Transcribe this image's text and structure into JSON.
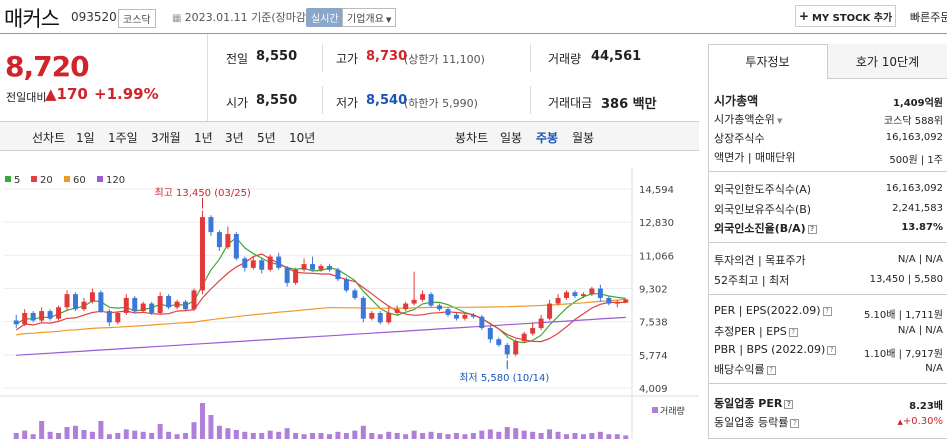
{
  "header": {
    "title": "매커스",
    "code": "093520",
    "market": "코스닥",
    "date": "2023.01.11  기준(장마감)",
    "live": "실시간",
    "info_dropdown": "기업개요",
    "mystock": "MY STOCK 추가",
    "quick": "빠른주문"
  },
  "price": {
    "current": "8,720",
    "change_label": "전일대비",
    "change": "170",
    "rate": "+1.99%"
  },
  "quote": {
    "prev_label": "전일",
    "prev": "8,550",
    "high_label": "고가",
    "high": "8,730",
    "upper_limit": "(상한가 11,100)",
    "volume_label": "거래량",
    "volume": "44,561",
    "open_label": "시가",
    "open": "8,550",
    "low_label": "저가",
    "low": "8,540",
    "lower_limit": "(하한가 5,990)",
    "amount_label": "거래대금",
    "amount": "386 백만"
  },
  "periods": {
    "line_label": "선차트",
    "line": [
      "1일",
      "1주일",
      "3개월",
      "1년",
      "3년",
      "5년",
      "10년"
    ],
    "candle_label": "봉차트",
    "candle": [
      "일봉",
      "주봉",
      "월봉"
    ],
    "candle_active": "주봉"
  },
  "chart_data": {
    "type": "candlestick",
    "legend": [
      "5",
      "20",
      "60",
      "120"
    ],
    "legend_colors": [
      "#3da833",
      "#e34040",
      "#f0992a",
      "#9b5bd2"
    ],
    "y_ticks": [
      "14,594",
      "12,830",
      "11,066",
      "9,302",
      "7,538",
      "5,774",
      "4,009"
    ],
    "ylim": [
      4009,
      14594
    ],
    "annotation_high": "최고 13,450 (03/25)",
    "annotation_low": "최저 5,580 (10/14)",
    "volume_label": "거래량",
    "candles": [
      [
        7600,
        7400,
        7900,
        7200
      ],
      [
        7400,
        8000,
        8200,
        7300
      ],
      [
        8000,
        7600,
        8100,
        7500
      ],
      [
        7600,
        8100,
        8300,
        7500
      ],
      [
        8100,
        7700,
        8200,
        7600
      ],
      [
        7700,
        8300,
        8400,
        7600
      ],
      [
        8300,
        9000,
        9200,
        8100
      ],
      [
        9000,
        8200,
        9100,
        8100
      ],
      [
        8200,
        8600,
        8800,
        8100
      ],
      [
        8600,
        9100,
        9300,
        8500
      ],
      [
        9100,
        8100,
        9200,
        8000
      ],
      [
        8100,
        7500,
        8200,
        7300
      ],
      [
        7500,
        8000,
        8100,
        7400
      ],
      [
        8000,
        8800,
        9000,
        7900
      ],
      [
        8800,
        8100,
        8900,
        8000
      ],
      [
        8100,
        8500,
        8600,
        8000
      ],
      [
        8500,
        8000,
        8600,
        7900
      ],
      [
        8000,
        8900,
        9100,
        7900
      ],
      [
        8900,
        8300,
        9000,
        8200
      ],
      [
        8300,
        8600,
        8700,
        8200
      ],
      [
        8600,
        8200,
        8700,
        8100
      ],
      [
        8200,
        9200,
        9300,
        8100
      ],
      [
        9200,
        13100,
        13450,
        9000
      ],
      [
        13100,
        12300,
        13200,
        12100
      ],
      [
        12300,
        11500,
        12400,
        11300
      ],
      [
        11500,
        12200,
        12600,
        11400
      ],
      [
        12200,
        10900,
        12300,
        10800
      ],
      [
        10900,
        10400,
        11000,
        10200
      ],
      [
        10400,
        10800,
        11000,
        10300
      ],
      [
        10800,
        10300,
        10900,
        10100
      ],
      [
        10300,
        11000,
        11100,
        10200
      ],
      [
        11000,
        10400,
        11200,
        10300
      ],
      [
        10400,
        9600,
        10500,
        9400
      ],
      [
        9600,
        10300,
        10400,
        9500
      ],
      [
        10300,
        10600,
        10900,
        10200
      ],
      [
        10600,
        10300,
        11000,
        10200
      ],
      [
        10300,
        10500,
        10600,
        10200
      ],
      [
        10500,
        10300,
        10600,
        10200
      ],
      [
        10300,
        9800,
        10400,
        9700
      ],
      [
        9800,
        9200,
        9900,
        9100
      ],
      [
        9200,
        8800,
        9300,
        8700
      ],
      [
        8800,
        7700,
        8900,
        7500
      ],
      [
        7700,
        8000,
        8100,
        7600
      ],
      [
        8000,
        7500,
        8100,
        7400
      ],
      [
        7500,
        8000,
        8400,
        7400
      ],
      [
        8000,
        8200,
        8400,
        7900
      ],
      [
        8200,
        8500,
        8600,
        8100
      ],
      [
        8500,
        8700,
        10200,
        8400
      ],
      [
        8700,
        9000,
        9200,
        8600
      ],
      [
        9000,
        8400,
        9100,
        8300
      ],
      [
        8400,
        8200,
        8500,
        8100
      ],
      [
        8200,
        7900,
        8300,
        7800
      ],
      [
        7900,
        7700,
        8000,
        7600
      ],
      [
        7700,
        7900,
        8000,
        7600
      ],
      [
        7900,
        7800,
        8000,
        7700
      ],
      [
        7800,
        7200,
        7900,
        7100
      ],
      [
        7200,
        6600,
        7300,
        6400
      ],
      [
        6600,
        6300,
        6700,
        6200
      ],
      [
        6300,
        5800,
        6400,
        5580
      ],
      [
        5800,
        6500,
        6600,
        5700
      ],
      [
        6500,
        6900,
        7000,
        6400
      ],
      [
        6900,
        7200,
        7500,
        6800
      ],
      [
        7200,
        7700,
        7900,
        7100
      ],
      [
        7700,
        8500,
        8700,
        7600
      ],
      [
        8500,
        8800,
        9000,
        8400
      ],
      [
        8800,
        9100,
        9200,
        8700
      ],
      [
        9100,
        8900,
        9200,
        8800
      ],
      [
        8900,
        9000,
        9100,
        8800
      ],
      [
        9000,
        9300,
        9400,
        8900
      ],
      [
        9300,
        8800,
        9500,
        8600
      ],
      [
        8800,
        8500,
        8900,
        8400
      ],
      [
        8500,
        8550,
        8700,
        8300
      ],
      [
        8550,
        8720,
        8730,
        8540
      ]
    ],
    "volumes": [
      10,
      14,
      8,
      30,
      12,
      10,
      20,
      22,
      15,
      12,
      30,
      8,
      10,
      16,
      14,
      12,
      10,
      25,
      12,
      8,
      10,
      28,
      60,
      40,
      22,
      18,
      15,
      12,
      10,
      10,
      14,
      12,
      18,
      10,
      8,
      10,
      10,
      8,
      12,
      10,
      14,
      22,
      10,
      8,
      12,
      10,
      8,
      14,
      10,
      12,
      10,
      8,
      10,
      8,
      10,
      14,
      16,
      12,
      20,
      18,
      14,
      12,
      10,
      16,
      12,
      8,
      10,
      8,
      10,
      12,
      8,
      8,
      6
    ]
  },
  "invest": {
    "tabs": [
      "투자정보",
      "호가 10단계"
    ],
    "market_cap_label": "시가총액",
    "market_cap": "1,409억원",
    "cap_rank_label": "시가총액순위",
    "cap_rank": "코스닥 588위",
    "shares_label": "상장주식수",
    "shares": "16,163,092",
    "par_label": "액면가 | 매매단위",
    "par": "500원 | 1주",
    "foreign_limit_label": "외국인한도주식수(A)",
    "foreign_limit": "16,163,092",
    "foreign_hold_label": "외국인보유주식수(B)",
    "foreign_hold": "2,241,583",
    "foreign_ratio_label": "외국인소진율(B/A)",
    "foreign_ratio": "13.87%",
    "opinion_label": "투자의견 | 목표주가",
    "opinion": "N/A | N/A",
    "w52_label": "52주최고 | 최저",
    "w52": "13,450 | 5,580",
    "per_label": "PER | EPS(2022.09)",
    "per": "5.10배 | 1,711원",
    "est_per_label": "추정PER | EPS",
    "est_per": "N/A | N/A",
    "pbr_label": "PBR | BPS (2022.09)",
    "pbr": "1.10배 | 7,917원",
    "div_label": "배당수익률",
    "div": "N/A",
    "ind_per_label": "동일업종 PER",
    "ind_per": "8.23배",
    "ind_rate_label": "동일업종 등락률",
    "ind_rate": "+0.30%"
  }
}
